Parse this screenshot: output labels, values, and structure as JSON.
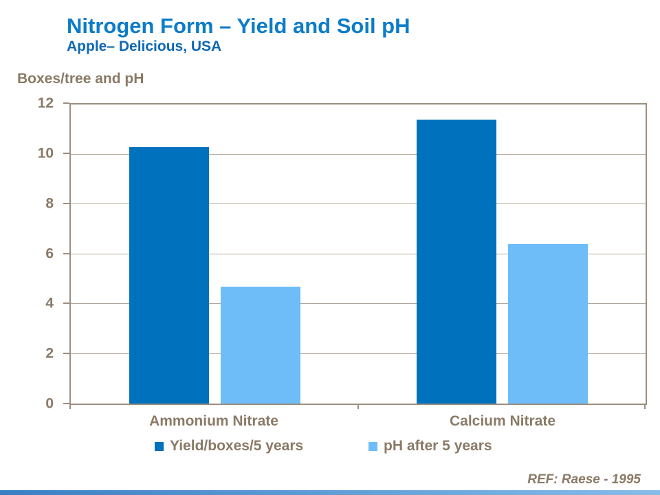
{
  "slide": {
    "title": "Nitrogen Form – Yield and Soil pH",
    "subtitle": "Apple– Delicious, USA",
    "axis_title": "Boxes/tree and pH",
    "reference": "REF: Raese - 1995"
  },
  "colors": {
    "title_blue": "#0b7cc9",
    "subtitle_blue": "#0e68b4",
    "brown_text": "#8a7a66",
    "axis_border": "#9b8d7f",
    "gridline": "#b2a79a",
    "bottom_bar_start": "#3a7fc4",
    "bottom_bar_end": "#86bce9"
  },
  "chart_data": {
    "type": "bar",
    "title": "Nitrogen Form – Yield and Soil pH",
    "subtitle": "Apple– Delicious, USA",
    "categories": [
      "Ammonium Nitrate",
      "Calcium Nitrate"
    ],
    "series": [
      {
        "name": "Yield/boxes/5 years",
        "color": "#0071bc",
        "values": [
          10.3,
          11.4
        ]
      },
      {
        "name": "pH after 5 years",
        "color": "#6ebcf8",
        "values": [
          4.7,
          6.4
        ]
      }
    ],
    "xlabel": "",
    "ylabel": "Boxes/tree and pH",
    "ylim": [
      0,
      12
    ],
    "yticks": [
      0,
      2,
      4,
      6,
      8,
      10,
      12
    ],
    "grid": true,
    "legend_position": "bottom",
    "annotation": "REF: Raese - 1995"
  }
}
